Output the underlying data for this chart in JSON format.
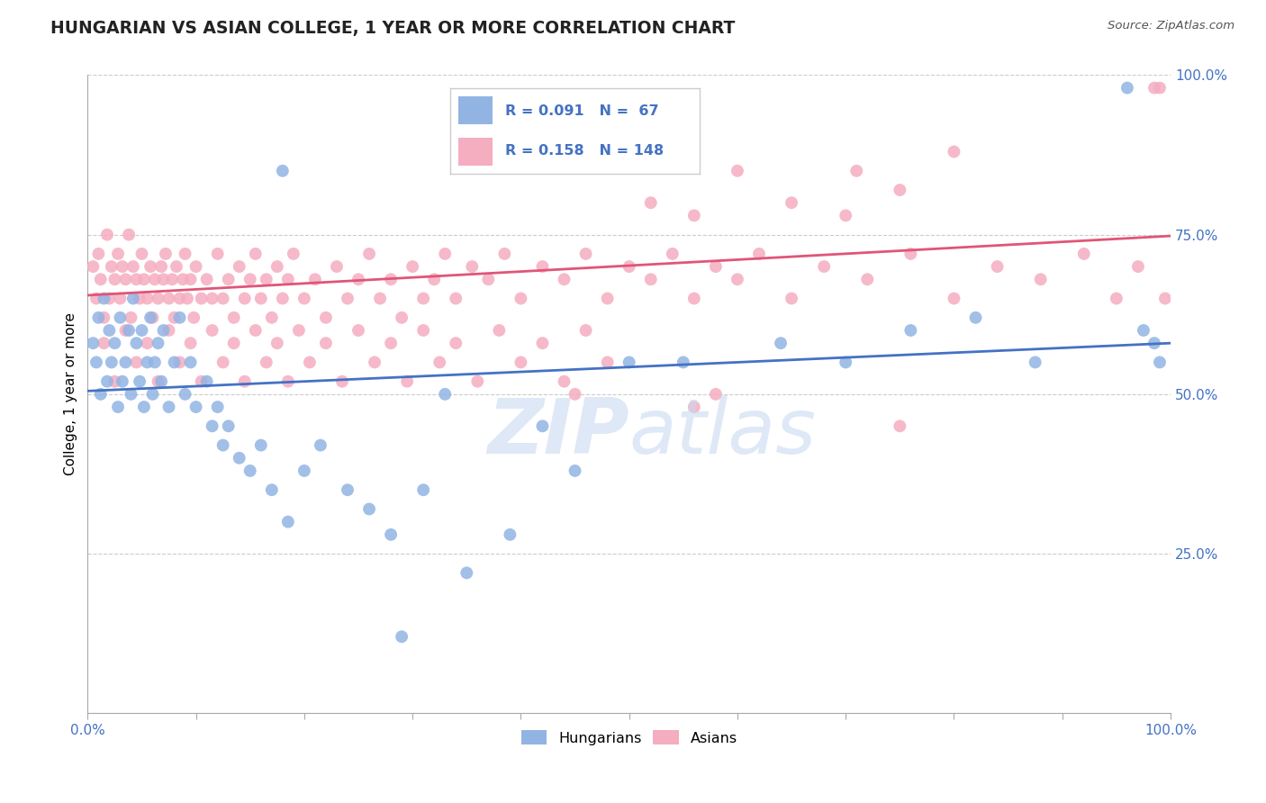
{
  "title": "HUNGARIAN VS ASIAN COLLEGE, 1 YEAR OR MORE CORRELATION CHART",
  "source": "Source: ZipAtlas.com",
  "ylabel": "College, 1 year or more",
  "xlim": [
    0.0,
    1.0
  ],
  "ylim": [
    0.0,
    1.0
  ],
  "color_hungarian": "#92b4e3",
  "color_asian": "#f5adc0",
  "line_color_hungarian": "#4472c4",
  "line_color_asian": "#e05577",
  "hun_line_start": 0.505,
  "hun_line_end": 0.58,
  "asi_line_start": 0.655,
  "asi_line_end": 0.748,
  "watermark_text": "ZIP atlas",
  "watermark_color": "#c8daf0",
  "hungarian_x": [
    0.005,
    0.008,
    0.01,
    0.012,
    0.015,
    0.018,
    0.02,
    0.022,
    0.025,
    0.028,
    0.03,
    0.032,
    0.035,
    0.038,
    0.04,
    0.042,
    0.045,
    0.048,
    0.05,
    0.052,
    0.055,
    0.058,
    0.06,
    0.062,
    0.065,
    0.068,
    0.07,
    0.075,
    0.08,
    0.085,
    0.09,
    0.095,
    0.1,
    0.11,
    0.115,
    0.12,
    0.125,
    0.13,
    0.14,
    0.15,
    0.16,
    0.17,
    0.185,
    0.2,
    0.215,
    0.24,
    0.26,
    0.28,
    0.31,
    0.35,
    0.39,
    0.45,
    0.5,
    0.55,
    0.64,
    0.7,
    0.76,
    0.82,
    0.875,
    0.96,
    0.975,
    0.985,
    0.99,
    0.18,
    0.29,
    0.33,
    0.42
  ],
  "hungarian_y": [
    0.58,
    0.55,
    0.62,
    0.5,
    0.65,
    0.52,
    0.6,
    0.55,
    0.58,
    0.48,
    0.62,
    0.52,
    0.55,
    0.6,
    0.5,
    0.65,
    0.58,
    0.52,
    0.6,
    0.48,
    0.55,
    0.62,
    0.5,
    0.55,
    0.58,
    0.52,
    0.6,
    0.48,
    0.55,
    0.62,
    0.5,
    0.55,
    0.48,
    0.52,
    0.45,
    0.48,
    0.42,
    0.45,
    0.4,
    0.38,
    0.42,
    0.35,
    0.3,
    0.38,
    0.42,
    0.35,
    0.32,
    0.28,
    0.35,
    0.22,
    0.28,
    0.38,
    0.55,
    0.55,
    0.58,
    0.55,
    0.6,
    0.62,
    0.55,
    0.98,
    0.6,
    0.58,
    0.55,
    0.85,
    0.12,
    0.5,
    0.45
  ],
  "asian_x": [
    0.005,
    0.008,
    0.01,
    0.012,
    0.015,
    0.018,
    0.02,
    0.022,
    0.025,
    0.028,
    0.03,
    0.032,
    0.035,
    0.038,
    0.04,
    0.042,
    0.045,
    0.048,
    0.05,
    0.052,
    0.055,
    0.058,
    0.06,
    0.062,
    0.065,
    0.068,
    0.07,
    0.072,
    0.075,
    0.078,
    0.08,
    0.082,
    0.085,
    0.088,
    0.09,
    0.092,
    0.095,
    0.098,
    0.1,
    0.105,
    0.11,
    0.115,
    0.12,
    0.125,
    0.13,
    0.135,
    0.14,
    0.145,
    0.15,
    0.155,
    0.16,
    0.165,
    0.17,
    0.175,
    0.18,
    0.185,
    0.19,
    0.2,
    0.21,
    0.22,
    0.23,
    0.24,
    0.25,
    0.26,
    0.27,
    0.28,
    0.29,
    0.3,
    0.31,
    0.32,
    0.33,
    0.34,
    0.355,
    0.37,
    0.385,
    0.4,
    0.42,
    0.44,
    0.46,
    0.48,
    0.5,
    0.52,
    0.54,
    0.56,
    0.58,
    0.6,
    0.62,
    0.65,
    0.68,
    0.72,
    0.76,
    0.8,
    0.84,
    0.88,
    0.92,
    0.95,
    0.97,
    0.985,
    0.99,
    0.995,
    0.015,
    0.025,
    0.035,
    0.045,
    0.055,
    0.065,
    0.075,
    0.085,
    0.095,
    0.105,
    0.115,
    0.125,
    0.135,
    0.145,
    0.155,
    0.165,
    0.175,
    0.185,
    0.195,
    0.205,
    0.22,
    0.235,
    0.25,
    0.265,
    0.28,
    0.295,
    0.31,
    0.325,
    0.34,
    0.36,
    0.38,
    0.4,
    0.42,
    0.44,
    0.46,
    0.48,
    0.52,
    0.56,
    0.6,
    0.65,
    0.7,
    0.75,
    0.8,
    0.75,
    0.56,
    0.45,
    0.58,
    0.71
  ],
  "asian_y": [
    0.7,
    0.65,
    0.72,
    0.68,
    0.62,
    0.75,
    0.65,
    0.7,
    0.68,
    0.72,
    0.65,
    0.7,
    0.68,
    0.75,
    0.62,
    0.7,
    0.68,
    0.65,
    0.72,
    0.68,
    0.65,
    0.7,
    0.62,
    0.68,
    0.65,
    0.7,
    0.68,
    0.72,
    0.65,
    0.68,
    0.62,
    0.7,
    0.65,
    0.68,
    0.72,
    0.65,
    0.68,
    0.62,
    0.7,
    0.65,
    0.68,
    0.65,
    0.72,
    0.65,
    0.68,
    0.62,
    0.7,
    0.65,
    0.68,
    0.72,
    0.65,
    0.68,
    0.62,
    0.7,
    0.65,
    0.68,
    0.72,
    0.65,
    0.68,
    0.62,
    0.7,
    0.65,
    0.68,
    0.72,
    0.65,
    0.68,
    0.62,
    0.7,
    0.65,
    0.68,
    0.72,
    0.65,
    0.7,
    0.68,
    0.72,
    0.65,
    0.7,
    0.68,
    0.72,
    0.65,
    0.7,
    0.68,
    0.72,
    0.65,
    0.7,
    0.68,
    0.72,
    0.65,
    0.7,
    0.68,
    0.72,
    0.65,
    0.7,
    0.68,
    0.72,
    0.65,
    0.7,
    0.98,
    0.98,
    0.65,
    0.58,
    0.52,
    0.6,
    0.55,
    0.58,
    0.52,
    0.6,
    0.55,
    0.58,
    0.52,
    0.6,
    0.55,
    0.58,
    0.52,
    0.6,
    0.55,
    0.58,
    0.52,
    0.6,
    0.55,
    0.58,
    0.52,
    0.6,
    0.55,
    0.58,
    0.52,
    0.6,
    0.55,
    0.58,
    0.52,
    0.6,
    0.55,
    0.58,
    0.52,
    0.6,
    0.55,
    0.8,
    0.78,
    0.85,
    0.8,
    0.78,
    0.82,
    0.88,
    0.45,
    0.48,
    0.5,
    0.5,
    0.85
  ]
}
